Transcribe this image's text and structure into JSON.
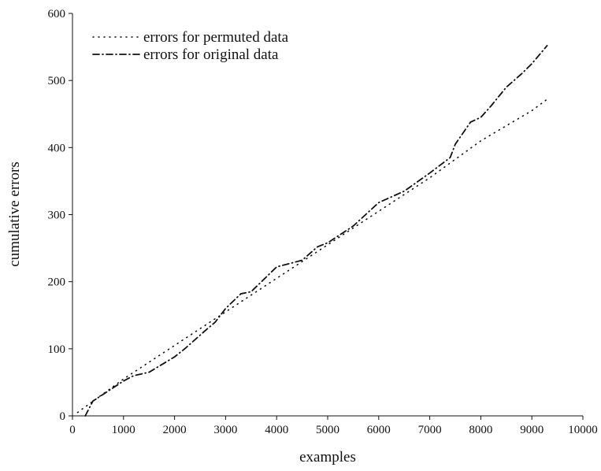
{
  "chart_data": {
    "type": "line",
    "xlabel": "examples",
    "ylabel": "cumulative errors",
    "xlim": [
      0,
      10000
    ],
    "ylim": [
      0,
      600
    ],
    "x_ticks": [
      "0",
      "1000",
      "2000",
      "3000",
      "4000",
      "5000",
      "6000",
      "7000",
      "8000",
      "9000",
      "10000"
    ],
    "y_ticks": [
      "0",
      "100",
      "200",
      "300",
      "400",
      "500",
      "600"
    ],
    "grid": false,
    "legend_position": "top-left",
    "series": [
      {
        "name": "errors for permuted data",
        "style": "dotted",
        "color": "#111111",
        "x": [
          100,
          1000,
          2000,
          3000,
          4000,
          5000,
          6000,
          7000,
          8000,
          9000,
          9300
        ],
        "y": [
          5,
          55,
          105,
          155,
          205,
          255,
          305,
          355,
          410,
          455,
          472
        ]
      },
      {
        "name": "errors for original data",
        "style": "dash-dot",
        "color": "#111111",
        "x": [
          250,
          400,
          600,
          1000,
          1200,
          1500,
          2000,
          2200,
          2600,
          2800,
          3000,
          3300,
          3500,
          4000,
          4500,
          4800,
          5000,
          5500,
          6000,
          6500,
          7000,
          7400,
          7500,
          7800,
          8000,
          8200,
          8500,
          8800,
          9000,
          9300
        ],
        "y": [
          0,
          22,
          32,
          52,
          60,
          65,
          88,
          100,
          127,
          140,
          160,
          182,
          185,
          222,
          232,
          252,
          258,
          283,
          318,
          335,
          362,
          385,
          405,
          438,
          445,
          462,
          490,
          510,
          525,
          552
        ]
      }
    ]
  }
}
